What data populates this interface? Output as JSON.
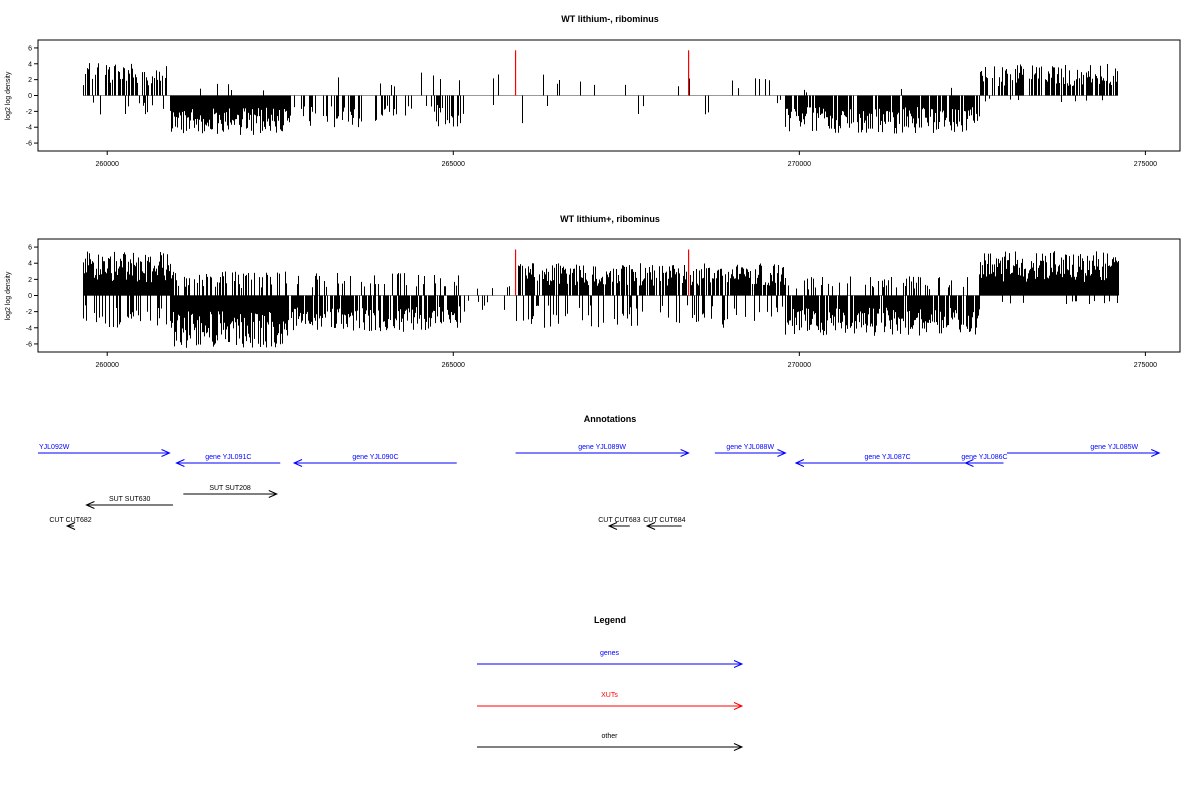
{
  "chart_data": [
    {
      "type": "bar",
      "title": "WT lithium-, ribominus",
      "ylabel": "log2 log density",
      "xlim": [
        259000,
        275500
      ],
      "ylim": [
        -7,
        7
      ],
      "yticks": [
        -6,
        -4,
        -2,
        0,
        2,
        4,
        6
      ],
      "xticks": [
        260000,
        265000,
        270000,
        275000
      ],
      "red_markers_x": [
        265900,
        268400
      ],
      "red_marker_height": 5.7,
      "segments": [
        {
          "start": 259650,
          "end": 260900,
          "pos_density": 0.55,
          "pos_max": 4.2,
          "neg_density": 0.25,
          "neg_max": 2.5
        },
        {
          "start": 260900,
          "end": 262600,
          "pos_density": 0.05,
          "pos_max": 1.5,
          "neg_density": 1.0,
          "neg_max": 5.0
        },
        {
          "start": 262600,
          "end": 265100,
          "pos_density": 0.03,
          "pos_max": 3.0,
          "neg_density": 0.35,
          "neg_max": 4.0
        },
        {
          "start": 265100,
          "end": 269000,
          "pos_density": 0.04,
          "pos_max": 2.8,
          "neg_density": 0.04,
          "neg_max": 3.5
        },
        {
          "start": 269000,
          "end": 269800,
          "pos_density": 0.2,
          "pos_max": 2.2,
          "neg_density": 0.02,
          "neg_max": 1.0
        },
        {
          "start": 269800,
          "end": 272600,
          "pos_density": 0.02,
          "pos_max": 1.0,
          "neg_density": 0.85,
          "neg_max": 4.8
        },
        {
          "start": 272600,
          "end": 274600,
          "pos_density": 0.6,
          "pos_max": 4.0,
          "neg_density": 0.05,
          "neg_max": 1.0
        }
      ]
    },
    {
      "type": "bar",
      "title": "WT lithium+, ribominus",
      "ylabel": "log2 log density",
      "xlim": [
        259000,
        275500
      ],
      "ylim": [
        -7,
        7
      ],
      "yticks": [
        -6,
        -4,
        -2,
        0,
        2,
        4,
        6
      ],
      "xticks": [
        260000,
        265000,
        270000,
        275000
      ],
      "red_markers_x": [
        265900,
        268400
      ],
      "red_marker_height": 5.7,
      "segments": [
        {
          "start": 259650,
          "end": 260900,
          "pos_density": 1.0,
          "pos_max": 5.5,
          "neg_density": 0.5,
          "neg_max": 4.0
        },
        {
          "start": 260900,
          "end": 262600,
          "pos_density": 0.4,
          "pos_max": 3.0,
          "neg_density": 1.0,
          "neg_max": 6.5
        },
        {
          "start": 262600,
          "end": 265100,
          "pos_density": 0.25,
          "pos_max": 3.0,
          "neg_density": 0.8,
          "neg_max": 4.5
        },
        {
          "start": 265100,
          "end": 265900,
          "pos_density": 0.1,
          "pos_max": 2.0,
          "neg_density": 0.15,
          "neg_max": 2.0
        },
        {
          "start": 265900,
          "end": 269800,
          "pos_density": 0.75,
          "pos_max": 4.0,
          "neg_density": 0.25,
          "neg_max": 4.0
        },
        {
          "start": 269800,
          "end": 272600,
          "pos_density": 0.2,
          "pos_max": 2.5,
          "neg_density": 0.9,
          "neg_max": 5.0
        },
        {
          "start": 272600,
          "end": 274600,
          "pos_density": 1.0,
          "pos_max": 5.5,
          "neg_density": 0.1,
          "neg_max": 1.5
        }
      ]
    }
  ],
  "annotations": {
    "title": "Annotations",
    "xlim": [
      259000,
      275500
    ],
    "items": [
      {
        "label": "YJL092W",
        "start": 259000,
        "end": 260900,
        "row": 0,
        "strand": "+",
        "kind": "gene",
        "label_at": "left"
      },
      {
        "label": "gene YJL091C",
        "start": 261000,
        "end": 262500,
        "row": 1,
        "strand": "-",
        "kind": "gene",
        "label_at": "center"
      },
      {
        "label": "gene YJL090C",
        "start": 262700,
        "end": 265050,
        "row": 1,
        "strand": "-",
        "kind": "gene",
        "label_at": "center"
      },
      {
        "label": "gene YJL089W",
        "start": 265900,
        "end": 268400,
        "row": 0,
        "strand": "+",
        "kind": "gene",
        "label_at": "center"
      },
      {
        "label": "gene YJL088W",
        "start": 268780,
        "end": 269800,
        "row": 0,
        "strand": "+",
        "kind": "gene",
        "label_at": "center"
      },
      {
        "label": "gene YJL087C",
        "start": 269950,
        "end": 272600,
        "row": 1,
        "strand": "-",
        "kind": "gene",
        "label_at": "center"
      },
      {
        "label": "gene YJL086C",
        "start": 272400,
        "end": 272950,
        "row": 1,
        "strand": "-",
        "kind": "gene",
        "label_at": "center"
      },
      {
        "label": "gene YJL085W",
        "start": 273000,
        "end": 275200,
        "row": 0,
        "strand": "+",
        "kind": "gene",
        "label_at": "right"
      },
      {
        "label": "SUT SUT208",
        "start": 261100,
        "end": 262450,
        "row": 2,
        "strand": "+",
        "kind": "other",
        "label_at": "center"
      },
      {
        "label": "SUT SUT630",
        "start": 259700,
        "end": 260950,
        "row": 3,
        "strand": "-",
        "kind": "other",
        "label_at": "center"
      },
      {
        "label": "CUT CUT682",
        "start": 259420,
        "end": 259520,
        "row": 4,
        "strand": "-",
        "kind": "other",
        "label_at": "center"
      },
      {
        "label": "CUT CUT683",
        "start": 267250,
        "end": 267550,
        "row": 4,
        "strand": "-",
        "kind": "other",
        "label_at": "center"
      },
      {
        "label": "CUT CUT684",
        "start": 267800,
        "end": 268300,
        "row": 4,
        "strand": "-",
        "kind": "other",
        "label_at": "center"
      }
    ]
  },
  "legend": {
    "title": "Legend",
    "items": [
      {
        "label": "genes",
        "color": "#0000ff"
      },
      {
        "label": "XUTs",
        "color": "#ff0000"
      },
      {
        "label": "other",
        "color": "#000000"
      }
    ]
  },
  "colors": {
    "gene": "#0000ff",
    "xut": "#ff0000",
    "other": "#000000",
    "baseline": "#999999"
  }
}
